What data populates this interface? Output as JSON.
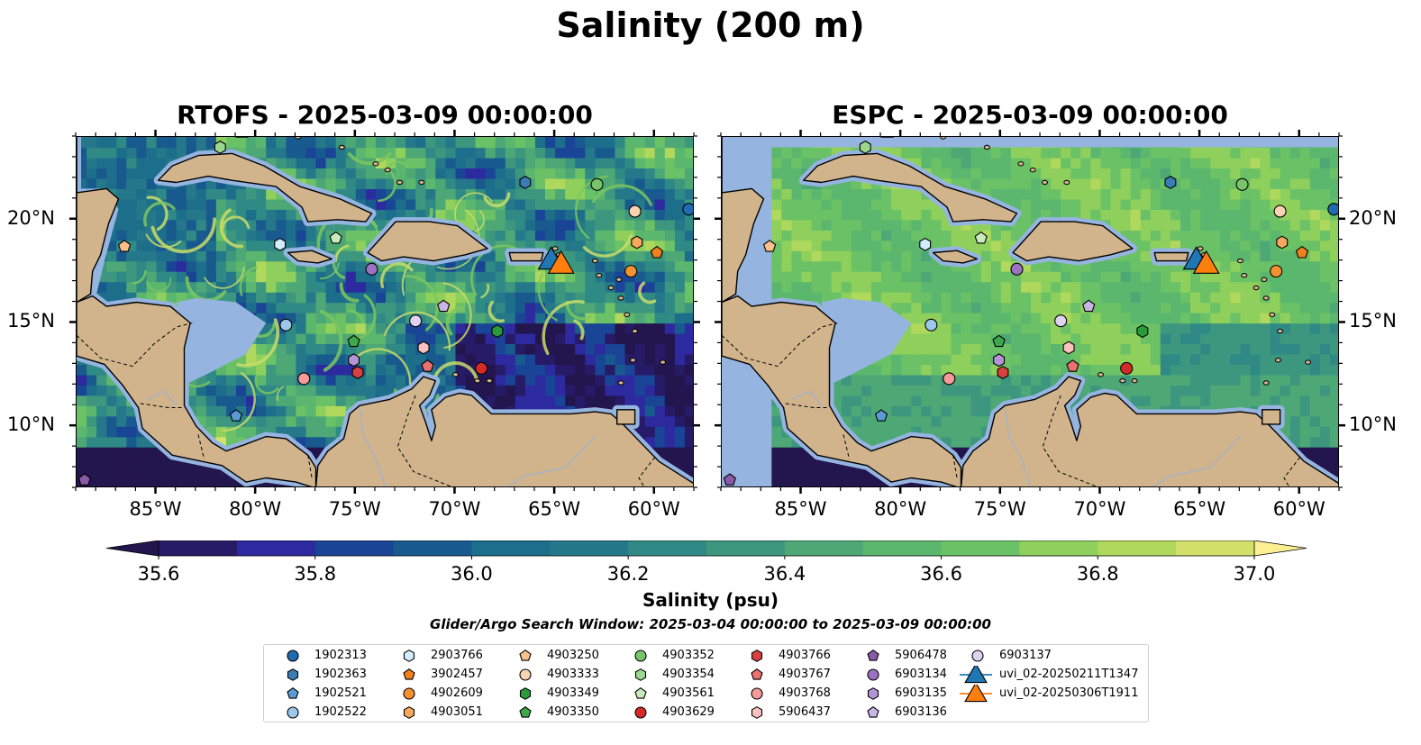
{
  "suptitle": "Salinity (200 m)",
  "panels": {
    "left_title": "RTOFS - 2025-03-09 00:00:00",
    "right_title": "ESPC - 2025-03-09 00:00:00"
  },
  "axes": {
    "x_ticks": [
      "85°W",
      "80°W",
      "75°W",
      "70°W",
      "65°W",
      "60°W"
    ],
    "y_ticks": [
      "20°N",
      "15°N",
      "10°N"
    ]
  },
  "colorbar": {
    "label": "Salinity (psu)",
    "ticks": [
      "35.6",
      "35.8",
      "36.0",
      "36.2",
      "36.4",
      "36.6",
      "36.8",
      "37.0"
    ],
    "colors": [
      "#271a66",
      "#2c2a9e",
      "#1a4495",
      "#195a8e",
      "#1c6e8b",
      "#24788a",
      "#2f8a85",
      "#3d977f",
      "#4ea876",
      "#5bb76e",
      "#6bc165",
      "#8fd05d",
      "#b0d85c",
      "#d3e06a"
    ],
    "under_color": "#23154e",
    "over_color": "#fbef93",
    "range": [
      35.6,
      37.0
    ]
  },
  "search_window": "Glider/Argo Search Window: 2025-03-04 00:00:00 to 2025-03-09 00:00:00",
  "legend": [
    {
      "label": "1902313",
      "marker": "circle",
      "color": "#1f6cb0"
    },
    {
      "label": "1902363",
      "marker": "hexagon",
      "color": "#3b7cb4"
    },
    {
      "label": "1902521",
      "marker": "pentagon",
      "color": "#5a9bd4"
    },
    {
      "label": "1902522",
      "marker": "circle",
      "color": "#9cc8ec"
    },
    {
      "label": "2903766",
      "marker": "hexagon",
      "color": "#d4ecfb"
    },
    {
      "label": "3902457",
      "marker": "pentagon",
      "color": "#f07f1f"
    },
    {
      "label": "4902609",
      "marker": "circle",
      "color": "#f49232"
    },
    {
      "label": "4903051",
      "marker": "hexagon",
      "color": "#f8a85e"
    },
    {
      "label": "4903250",
      "marker": "pentagon",
      "color": "#fac08c"
    },
    {
      "label": "4903333",
      "marker": "circle",
      "color": "#fbd3b0"
    },
    {
      "label": "4903349",
      "marker": "hexagon",
      "color": "#2a9a3a"
    },
    {
      "label": "4903350",
      "marker": "pentagon",
      "color": "#3ea84a"
    },
    {
      "label": "4903352",
      "marker": "circle",
      "color": "#78c46a"
    },
    {
      "label": "4903354",
      "marker": "hexagon",
      "color": "#9dd68e"
    },
    {
      "label": "4903561",
      "marker": "pentagon",
      "color": "#c8ebbd"
    },
    {
      "label": "4903629",
      "marker": "circle",
      "color": "#d42a2a"
    },
    {
      "label": "4903766",
      "marker": "hexagon",
      "color": "#d94040"
    },
    {
      "label": "4903767",
      "marker": "pentagon",
      "color": "#ec7070"
    },
    {
      "label": "4903768",
      "marker": "circle",
      "color": "#f69a9a"
    },
    {
      "label": "5906437",
      "marker": "hexagon",
      "color": "#f9c2c0"
    },
    {
      "label": "5906478",
      "marker": "pentagon",
      "color": "#8a5aa8"
    },
    {
      "label": "6903134",
      "marker": "circle",
      "color": "#9b72c2"
    },
    {
      "label": "6903135",
      "marker": "hexagon",
      "color": "#b493d6"
    },
    {
      "label": "6903136",
      "marker": "pentagon",
      "color": "#cab4e4"
    },
    {
      "label": "6903137",
      "marker": "circle",
      "color": "#e0d2f3"
    },
    {
      "label": "uvi_02-20250211T1347",
      "marker": "triangle",
      "color": "#1f77b4"
    },
    {
      "label": "uvi_02-20250306T1911",
      "marker": "triangle",
      "color": "#ff7f0e"
    }
  ],
  "map_colors": {
    "land": "#d2b48c",
    "shelf": "#95b4e0",
    "coast": "#000000",
    "border": "#000000",
    "river": "#9ab3d1"
  },
  "chart_data": {
    "type": "scatter",
    "title": "Salinity (200 m)",
    "xlabel": "",
    "ylabel": "",
    "xlim": [
      -89,
      -58
    ],
    "ylim": [
      7,
      24
    ],
    "x_ticks": [
      -85,
      -80,
      -75,
      -70,
      -65,
      -60
    ],
    "y_ticks": [
      20,
      15,
      10
    ],
    "grid": false,
    "legend_position": "bottom-center",
    "series": [
      {
        "name": "1902313",
        "lon": -58.3,
        "lat": 20.5
      },
      {
        "name": "1902363",
        "lon": -66.5,
        "lat": 21.8
      },
      {
        "name": "1902521",
        "lon": -81.0,
        "lat": 10.5
      },
      {
        "name": "1902522",
        "lon": -78.5,
        "lat": 14.9
      },
      {
        "name": "2903766",
        "lon": -78.8,
        "lat": 18.8
      },
      {
        "name": "3902457",
        "lon": -59.9,
        "lat": 18.4
      },
      {
        "name": "4902609",
        "lon": -61.2,
        "lat": 17.5
      },
      {
        "name": "4903051",
        "lon": -60.9,
        "lat": 18.9
      },
      {
        "name": "4903250",
        "lon": -86.6,
        "lat": 18.7
      },
      {
        "name": "4903333",
        "lon": -61.0,
        "lat": 20.4
      },
      {
        "name": "4903349",
        "lon": -67.9,
        "lat": 14.6
      },
      {
        "name": "4903350",
        "lon": -75.1,
        "lat": 14.1
      },
      {
        "name": "4903352",
        "lon": -62.9,
        "lat": 21.7
      },
      {
        "name": "4903354",
        "lon": -81.8,
        "lat": 23.5
      },
      {
        "name": "4903561",
        "lon": -76.0,
        "lat": 19.1
      },
      {
        "name": "4903629",
        "lon": -68.7,
        "lat": 12.8
      },
      {
        "name": "4903766",
        "lon": -74.9,
        "lat": 12.6
      },
      {
        "name": "4903767",
        "lon": -71.4,
        "lat": 12.9
      },
      {
        "name": "4903768",
        "lon": -77.6,
        "lat": 12.3
      },
      {
        "name": "5906437",
        "lon": -71.6,
        "lat": 13.8
      },
      {
        "name": "5906478",
        "lon": -88.6,
        "lat": 7.4
      },
      {
        "name": "6903134",
        "lon": -74.2,
        "lat": 17.6
      },
      {
        "name": "6903135",
        "lon": -75.1,
        "lat": 13.2
      },
      {
        "name": "6903136",
        "lon": -70.6,
        "lat": 15.8
      },
      {
        "name": "6903137",
        "lon": -72.0,
        "lat": 15.1
      },
      {
        "name": "uvi_02-20250211T1347",
        "lon": -65.2,
        "lat": 18.1
      },
      {
        "name": "uvi_02-20250306T1911",
        "lon": -64.7,
        "lat": 17.9
      }
    ]
  }
}
